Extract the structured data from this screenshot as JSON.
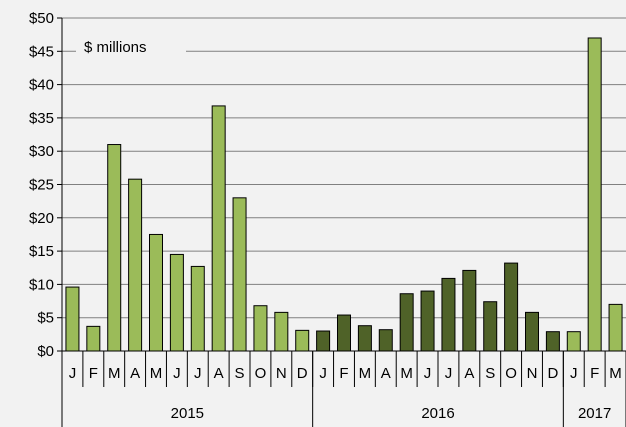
{
  "chart_data": {
    "type": "bar",
    "annotation": "$ millions",
    "ylim": [
      0,
      50
    ],
    "yticks": [
      "$0",
      "$5",
      "$10",
      "$15",
      "$20",
      "$25",
      "$30",
      "$35",
      "$40",
      "$45",
      "$50"
    ],
    "grid": true,
    "categories": [
      "J",
      "F",
      "M",
      "A",
      "M",
      "J",
      "J",
      "A",
      "S",
      "O",
      "N",
      "D",
      "J",
      "F",
      "M",
      "A",
      "M",
      "J",
      "J",
      "A",
      "S",
      "O",
      "N",
      "D",
      "J",
      "F",
      "M"
    ],
    "values": [
      9.6,
      3.7,
      31.0,
      25.8,
      17.5,
      14.5,
      12.7,
      36.8,
      23.0,
      6.8,
      5.8,
      3.1,
      3.0,
      5.4,
      3.8,
      3.2,
      8.6,
      9.0,
      10.9,
      12.1,
      7.4,
      13.2,
      5.8,
      2.9,
      2.9,
      47.0,
      7.0
    ],
    "groups": [
      {
        "label": "2015",
        "count": 12,
        "color": "#9bbb59"
      },
      {
        "label": "2016",
        "count": 12,
        "color": "#4f6228"
      },
      {
        "label": "2017",
        "count": 3,
        "color": "#9bbb59"
      }
    ]
  }
}
